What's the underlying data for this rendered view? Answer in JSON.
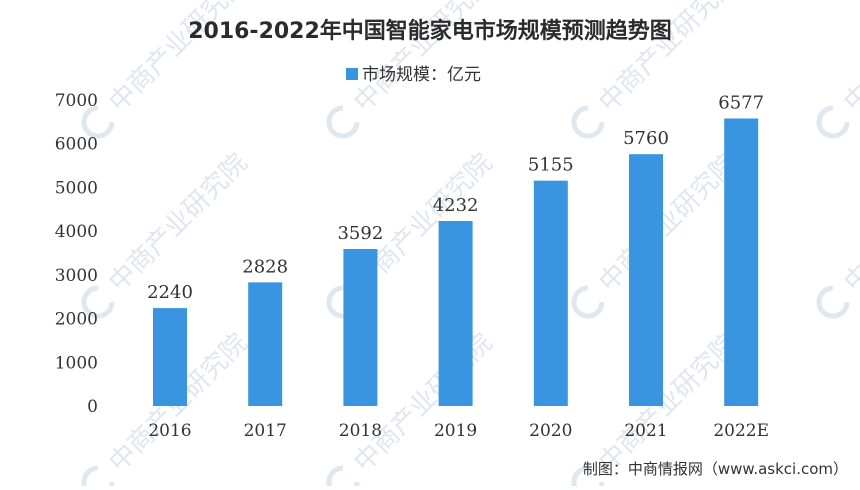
{
  "chart_data": {
    "type": "bar",
    "title": "2016-2022年中国智能家电市场规模预测趋势图",
    "legend": "市场规模：亿元",
    "legend_position": "top-center",
    "categories": [
      "2016",
      "2017",
      "2018",
      "2019",
      "2020",
      "2021",
      "2022E"
    ],
    "series": [
      {
        "name": "市场规模：亿元",
        "values": [
          2240,
          2828,
          3592,
          4232,
          5155,
          5760,
          6577
        ]
      }
    ],
    "data_labels": [
      "2240",
      "2828",
      "3592",
      "4232",
      "5155",
      "5760",
      "6577"
    ],
    "y_ticks": [
      "0",
      "1000",
      "2000",
      "3000",
      "4000",
      "5000",
      "6000",
      "7000"
    ],
    "ylim": [
      0,
      7000
    ],
    "grid": false,
    "bar_color": "#3a95e0"
  },
  "source": "制图：中商情报网（www.askci.com）",
  "watermark": "中商产业研究院"
}
